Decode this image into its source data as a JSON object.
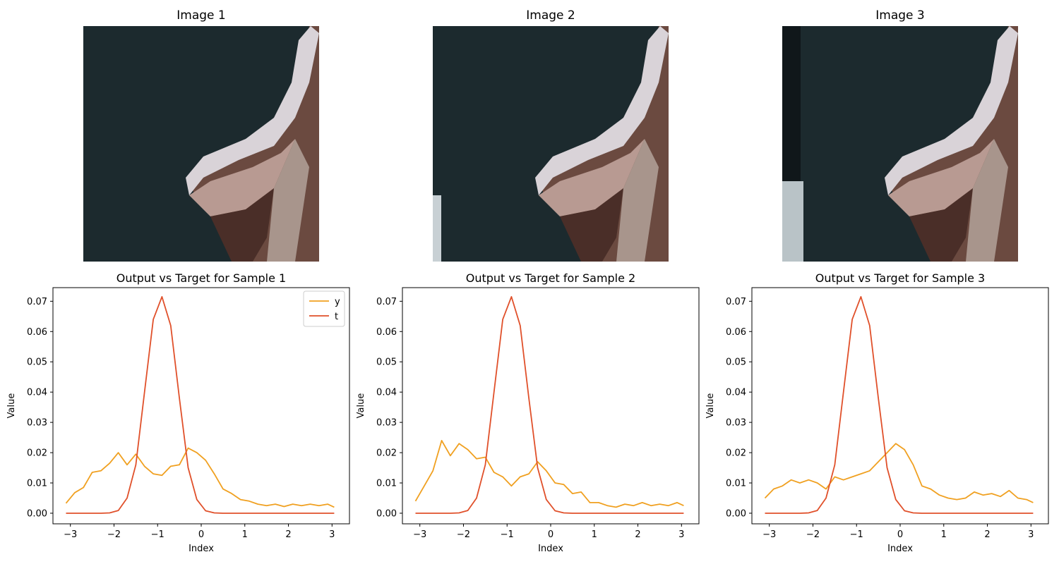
{
  "images": [
    {
      "title": "Image 1"
    },
    {
      "title": "Image 2"
    },
    {
      "title": "Image 3"
    }
  ],
  "colors": {
    "y_series": "#f0a020",
    "t_series": "#e0502a",
    "image_background": "#1c2a2e"
  },
  "chart_data": [
    {
      "type": "line",
      "title": "Output vs Target for Sample 1",
      "xlabel": "Index",
      "ylabel": "Value",
      "xlim": [
        -3.4,
        3.4
      ],
      "ylim": [
        -0.0035,
        0.0745
      ],
      "xticks": [
        -3,
        -2,
        -1,
        0,
        1,
        2,
        3
      ],
      "xtick_labels": [
        "−3",
        "−2",
        "−1",
        "0",
        "1",
        "2",
        "3"
      ],
      "yticks": [
        0.0,
        0.01,
        0.02,
        0.03,
        0.04,
        0.05,
        0.06,
        0.07
      ],
      "ytick_labels": [
        "0.00",
        "0.01",
        "0.02",
        "0.03",
        "0.04",
        "0.05",
        "0.06",
        "0.07"
      ],
      "legend": "top-right",
      "x": [
        -3.1,
        -2.9,
        -2.7,
        -2.5,
        -2.3,
        -2.1,
        -1.9,
        -1.7,
        -1.5,
        -1.3,
        -1.1,
        -0.9,
        -0.7,
        -0.5,
        -0.3,
        -0.1,
        0.1,
        0.3,
        0.5,
        0.7,
        0.9,
        1.1,
        1.3,
        1.5,
        1.7,
        1.9,
        2.1,
        2.3,
        2.5,
        2.7,
        2.9,
        3.05
      ],
      "series": [
        {
          "name": "y",
          "color": "#f0a020",
          "values": [
            0.0033,
            0.0068,
            0.0085,
            0.0135,
            0.014,
            0.0165,
            0.02,
            0.016,
            0.0195,
            0.0155,
            0.013,
            0.0125,
            0.0155,
            0.016,
            0.0215,
            0.02,
            0.0175,
            0.013,
            0.008,
            0.0065,
            0.0045,
            0.004,
            0.003,
            0.0025,
            0.003,
            0.0022,
            0.003,
            0.0025,
            0.003,
            0.0025,
            0.003,
            0.002
          ]
        },
        {
          "name": "t",
          "color": "#e0502a",
          "values": [
            0.0,
            0.0,
            0.0,
            0.0,
            0.0,
            0.0001,
            0.0009,
            0.005,
            0.016,
            0.04,
            0.064,
            0.0715,
            0.062,
            0.038,
            0.015,
            0.0045,
            0.0008,
            0.0001,
            0.0,
            0.0,
            0.0,
            0.0,
            0.0,
            0.0,
            0.0,
            0.0,
            0.0,
            0.0,
            0.0,
            0.0,
            0.0,
            0.0
          ]
        }
      ]
    },
    {
      "type": "line",
      "title": "Output vs Target for Sample 2",
      "xlabel": "Index",
      "ylabel": "Value",
      "xlim": [
        -3.4,
        3.4
      ],
      "ylim": [
        -0.0035,
        0.0745
      ],
      "xticks": [
        -3,
        -2,
        -1,
        0,
        1,
        2,
        3
      ],
      "xtick_labels": [
        "−3",
        "−2",
        "−1",
        "0",
        "1",
        "2",
        "3"
      ],
      "yticks": [
        0.0,
        0.01,
        0.02,
        0.03,
        0.04,
        0.05,
        0.06,
        0.07
      ],
      "ytick_labels": [
        "0.00",
        "0.01",
        "0.02",
        "0.03",
        "0.04",
        "0.05",
        "0.06",
        "0.07"
      ],
      "x": [
        -3.1,
        -2.9,
        -2.7,
        -2.5,
        -2.3,
        -2.1,
        -1.9,
        -1.7,
        -1.5,
        -1.3,
        -1.1,
        -0.9,
        -0.7,
        -0.5,
        -0.3,
        -0.1,
        0.1,
        0.3,
        0.5,
        0.7,
        0.9,
        1.1,
        1.3,
        1.5,
        1.7,
        1.9,
        2.1,
        2.3,
        2.5,
        2.7,
        2.9,
        3.05
      ],
      "series": [
        {
          "name": "y",
          "color": "#f0a020",
          "values": [
            0.004,
            0.009,
            0.014,
            0.024,
            0.019,
            0.023,
            0.021,
            0.018,
            0.0185,
            0.0135,
            0.012,
            0.009,
            0.012,
            0.013,
            0.017,
            0.014,
            0.01,
            0.0095,
            0.0065,
            0.007,
            0.0035,
            0.0035,
            0.0025,
            0.002,
            0.003,
            0.0025,
            0.0035,
            0.0025,
            0.003,
            0.0025,
            0.0035,
            0.0025
          ]
        },
        {
          "name": "t",
          "color": "#e0502a",
          "values": [
            0.0,
            0.0,
            0.0,
            0.0,
            0.0,
            0.0001,
            0.0009,
            0.005,
            0.016,
            0.04,
            0.064,
            0.0715,
            0.062,
            0.038,
            0.015,
            0.0045,
            0.0008,
            0.0001,
            0.0,
            0.0,
            0.0,
            0.0,
            0.0,
            0.0,
            0.0,
            0.0,
            0.0,
            0.0,
            0.0,
            0.0,
            0.0,
            0.0
          ]
        }
      ]
    },
    {
      "type": "line",
      "title": "Output vs Target for Sample 3",
      "xlabel": "Index",
      "ylabel": "Value",
      "xlim": [
        -3.4,
        3.4
      ],
      "ylim": [
        -0.0035,
        0.0745
      ],
      "xticks": [
        -3,
        -2,
        -1,
        0,
        1,
        2,
        3
      ],
      "xtick_labels": [
        "−3",
        "−2",
        "−1",
        "0",
        "1",
        "2",
        "3"
      ],
      "yticks": [
        0.0,
        0.01,
        0.02,
        0.03,
        0.04,
        0.05,
        0.06,
        0.07
      ],
      "ytick_labels": [
        "0.00",
        "0.01",
        "0.02",
        "0.03",
        "0.04",
        "0.05",
        "0.06",
        "0.07"
      ],
      "x": [
        -3.1,
        -2.9,
        -2.7,
        -2.5,
        -2.3,
        -2.1,
        -1.9,
        -1.7,
        -1.5,
        -1.3,
        -1.1,
        -0.9,
        -0.7,
        -0.5,
        -0.3,
        -0.1,
        0.1,
        0.3,
        0.5,
        0.7,
        0.9,
        1.1,
        1.3,
        1.5,
        1.7,
        1.9,
        2.1,
        2.3,
        2.5,
        2.7,
        2.9,
        3.05
      ],
      "series": [
        {
          "name": "y",
          "color": "#f0a020",
          "values": [
            0.005,
            0.008,
            0.009,
            0.011,
            0.01,
            0.011,
            0.01,
            0.008,
            0.012,
            0.011,
            0.012,
            0.013,
            0.014,
            0.017,
            0.02,
            0.023,
            0.021,
            0.016,
            0.009,
            0.008,
            0.006,
            0.005,
            0.0045,
            0.005,
            0.007,
            0.006,
            0.0065,
            0.0055,
            0.0075,
            0.005,
            0.0045,
            0.0035
          ]
        },
        {
          "name": "t",
          "color": "#e0502a",
          "values": [
            0.0,
            0.0,
            0.0,
            0.0,
            0.0,
            0.0001,
            0.0009,
            0.005,
            0.016,
            0.04,
            0.064,
            0.0715,
            0.062,
            0.038,
            0.015,
            0.0045,
            0.0008,
            0.0001,
            0.0,
            0.0,
            0.0,
            0.0,
            0.0,
            0.0,
            0.0,
            0.0,
            0.0,
            0.0,
            0.0,
            0.0,
            0.0,
            0.0
          ]
        }
      ]
    }
  ]
}
